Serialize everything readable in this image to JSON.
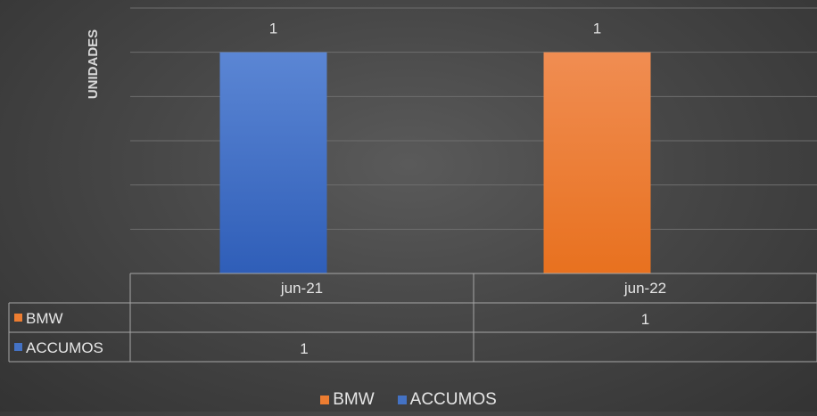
{
  "chart_data": {
    "type": "bar",
    "ylabel": "UNIDADES",
    "categories": [
      "jun-21",
      "jun-22"
    ],
    "series": [
      {
        "name": "BMW",
        "values": [
          null,
          1
        ],
        "color": "#ED7D31"
      },
      {
        "name": "ACCUMOS",
        "values": [
          1,
          null
        ],
        "color": "#4472C4"
      }
    ],
    "ylim": [
      0,
      1.2
    ],
    "grid": true,
    "data_table": true,
    "legend_position": "bottom"
  }
}
